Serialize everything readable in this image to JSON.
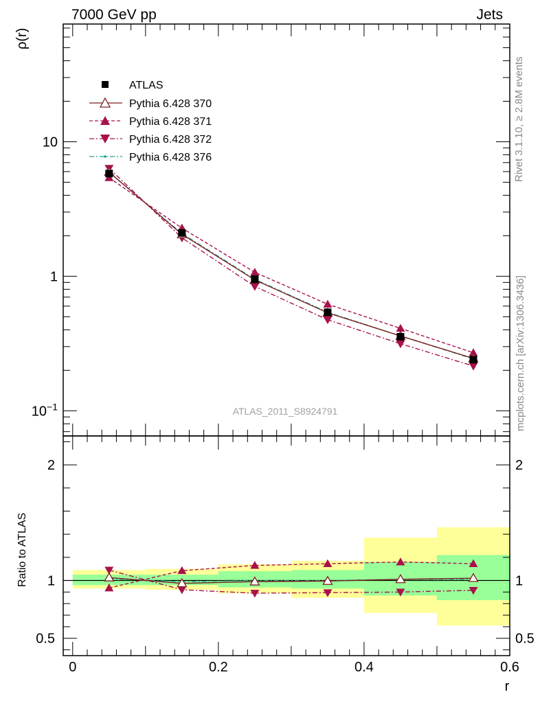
{
  "header": {
    "left": "7000 GeV pp",
    "right": "Jets"
  },
  "side_text": {
    "top": "Rivet 3.1.10, ≥ 2.8M events",
    "bottom": "mcplots.cern.ch [arXiv:1306.3436]"
  },
  "watermark": "ATLAS_2011_S8924791",
  "colors": {
    "atlas": "#000000",
    "p370": "#7a1f1f",
    "p371": "#a8114c",
    "p372": "#a8114c",
    "p376": "#1aa58a",
    "band_inner": "#99ff99",
    "band_outer": "#ffff99"
  },
  "chart_data": [
    {
      "type": "line",
      "panel": "main",
      "ylabel": "ρ(r)",
      "yscale": "log",
      "ylim": [
        0.065,
        75
      ],
      "xlim": [
        -0.013,
        0.6
      ],
      "yticks": [
        {
          "value": 0.1,
          "base": "10",
          "exp": "−1"
        },
        {
          "value": 1,
          "label": "1"
        },
        {
          "value": 10,
          "label": "10"
        }
      ],
      "x": [
        0.05,
        0.15,
        0.25,
        0.35,
        0.45,
        0.55
      ],
      "series": [
        {
          "name": "ATLAS",
          "values": [
            5.8,
            2.1,
            0.95,
            0.54,
            0.355,
            0.24
          ],
          "marker": "square",
          "line": "none"
        },
        {
          "name": "Pythia 6.428 370",
          "values": [
            5.95,
            2.05,
            0.94,
            0.535,
            0.36,
            0.245
          ],
          "marker": "triangle-up-open",
          "line": "solid"
        },
        {
          "name": "Pythia 6.428 371",
          "values": [
            5.4,
            2.28,
            1.07,
            0.62,
            0.41,
            0.27
          ],
          "marker": "triangle-up",
          "line": "dashed"
        },
        {
          "name": "Pythia 6.428 372",
          "values": [
            6.35,
            1.93,
            0.84,
            0.475,
            0.315,
            0.215
          ],
          "marker": "triangle-down",
          "line": "dashdot"
        },
        {
          "name": "Pythia 6.428 376",
          "values": [
            5.9,
            2.08,
            0.95,
            0.54,
            0.36,
            0.243
          ],
          "marker": "dot",
          "line": "dashdot"
        }
      ]
    },
    {
      "type": "line",
      "panel": "ratio",
      "ylabel": "Ratio to ATLAS",
      "xlabel": "r",
      "ylim": [
        0.35,
        2.25
      ],
      "xlim": [
        -0.013,
        0.6
      ],
      "yticks": [
        0.5,
        1,
        2
      ],
      "xticks": [
        0,
        0.2,
        0.4,
        0.6
      ],
      "x": [
        0.05,
        0.15,
        0.25,
        0.35,
        0.45,
        0.55
      ],
      "bins": [
        [
          0.0,
          0.1
        ],
        [
          0.1,
          0.2
        ],
        [
          0.2,
          0.3
        ],
        [
          0.3,
          0.4
        ],
        [
          0.4,
          0.5
        ],
        [
          0.5,
          0.6
        ]
      ],
      "band_inner": [
        [
          0.96,
          1.05
        ],
        [
          0.96,
          1.05
        ],
        [
          0.94,
          1.08
        ],
        [
          0.93,
          1.09
        ],
        [
          0.87,
          1.16
        ],
        [
          0.83,
          1.22
        ]
      ],
      "band_outer": [
        [
          0.93,
          1.09
        ],
        [
          0.92,
          1.1
        ],
        [
          0.89,
          1.14
        ],
        [
          0.85,
          1.17
        ],
        [
          0.72,
          1.37
        ],
        [
          0.61,
          1.46
        ]
      ],
      "series": [
        {
          "name": "Pythia 6.428 370",
          "values": [
            1.025,
            0.975,
            0.99,
            0.995,
            1.01,
            1.02
          ]
        },
        {
          "name": "Pythia 6.428 371",
          "values": [
            0.935,
            1.085,
            1.13,
            1.145,
            1.16,
            1.145
          ]
        },
        {
          "name": "Pythia 6.428 372",
          "values": [
            1.09,
            0.92,
            0.89,
            0.895,
            0.9,
            0.915
          ]
        },
        {
          "name": "Pythia 6.428 376",
          "values": [
            1.015,
            0.99,
            1.0,
            1.0,
            1.01,
            1.01
          ]
        }
      ]
    }
  ]
}
